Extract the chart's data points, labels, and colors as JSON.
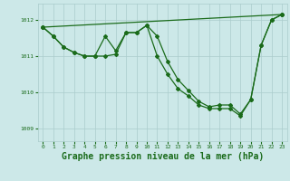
{
  "background_color": "#cce8e8",
  "grid_color": "#aacccc",
  "line_color": "#1a6b1a",
  "xlabel": "Graphe pression niveau de la mer (hPa)",
  "xlabel_fontsize": 7,
  "yticks": [
    1009,
    1010,
    1011,
    1012
  ],
  "xticks": [
    0,
    1,
    2,
    3,
    4,
    5,
    6,
    7,
    8,
    9,
    10,
    11,
    12,
    13,
    14,
    15,
    16,
    17,
    18,
    19,
    20,
    21,
    22,
    23
  ],
  "ylim": [
    1008.65,
    1012.45
  ],
  "xlim": [
    -0.5,
    23.5
  ],
  "line1_x": [
    0,
    1,
    2,
    3,
    4,
    5,
    6,
    7,
    8,
    9,
    10,
    11,
    12,
    13,
    14,
    15,
    16,
    17,
    18,
    19,
    20,
    21,
    22,
    23
  ],
  "line1_y": [
    1011.8,
    1011.55,
    1011.25,
    1011.1,
    1011.0,
    1011.0,
    1011.55,
    1011.15,
    1011.65,
    1011.65,
    1011.85,
    1011.55,
    1010.85,
    1010.35,
    1010.05,
    1009.75,
    1009.6,
    1009.65,
    1009.65,
    1009.4,
    1009.8,
    1011.3,
    1012.0,
    1012.15
  ],
  "line2_x": [
    0,
    1,
    2,
    3,
    4,
    5,
    6,
    7,
    8,
    9,
    10,
    11,
    12,
    13,
    14,
    15,
    16,
    17,
    18,
    19,
    20,
    21,
    22,
    23
  ],
  "line2_y": [
    1011.8,
    1011.55,
    1011.25,
    1011.1,
    1011.0,
    1011.0,
    1011.0,
    1011.05,
    1011.65,
    1011.65,
    1011.85,
    1011.0,
    1010.5,
    1010.1,
    1009.9,
    1009.65,
    1009.55,
    1009.55,
    1009.55,
    1009.35,
    1009.8,
    1011.3,
    1012.0,
    1012.15
  ],
  "line3_x": [
    0,
    23
  ],
  "line3_y": [
    1011.8,
    1012.15
  ],
  "marker": "D",
  "markersize": 2.0,
  "linewidth": 0.9
}
